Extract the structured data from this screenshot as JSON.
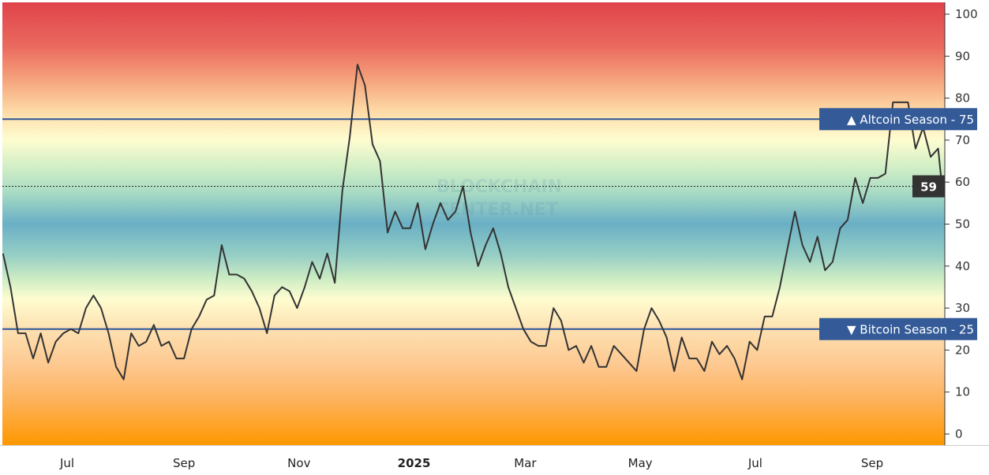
{
  "chart_data": {
    "type": "line",
    "title": "",
    "xlabel": "",
    "ylabel": "",
    "ylim": [
      0,
      100
    ],
    "y_ticks": [
      "0",
      "10",
      "20",
      "30",
      "40",
      "50",
      "60",
      "70",
      "80",
      "90",
      "100"
    ],
    "x_ticks": [
      {
        "date": "2024-07-01",
        "label": "Jul"
      },
      {
        "date": "2024-09-01",
        "label": "Sep"
      },
      {
        "date": "2024-11-01",
        "label": "Nov"
      },
      {
        "date": "2025-01-01",
        "label": "2025",
        "bold": true
      },
      {
        "date": "2025-03-01",
        "label": "Mar"
      },
      {
        "date": "2025-05-01",
        "label": "May"
      },
      {
        "date": "2025-07-01",
        "label": "Jul"
      },
      {
        "date": "2025-09-01",
        "label": "Sep"
      }
    ],
    "y_axis_position": "right",
    "grid": false,
    "background": "vertical color gradient: red at 100, yellow near 70, blue near 50, yellow near 30, orange at 0",
    "line_color": "#333333",
    "reference_lines": [
      {
        "value": 75,
        "label": "▲ Altcoin Season",
        "value_label": "75",
        "color": "#2d5597"
      },
      {
        "value": 25,
        "label": "▼ Bitcoin Season",
        "value_label": "25",
        "color": "#2d5597"
      }
    ],
    "current_value": {
      "value": 59,
      "label": "59"
    },
    "watermark": [
      "BLOCKCHAIN",
      "CENTER.NET"
    ],
    "series": [
      {
        "points": [
          [
            "2024-05-28",
            43
          ],
          [
            "2024-06-01",
            35
          ],
          [
            "2024-06-05",
            24
          ],
          [
            "2024-06-09",
            24
          ],
          [
            "2024-06-13",
            18
          ],
          [
            "2024-06-17",
            24
          ],
          [
            "2024-06-21",
            17
          ],
          [
            "2024-06-25",
            22
          ],
          [
            "2024-06-29",
            24
          ],
          [
            "2024-07-03",
            25
          ],
          [
            "2024-07-07",
            24
          ],
          [
            "2024-07-11",
            30
          ],
          [
            "2024-07-15",
            33
          ],
          [
            "2024-07-19",
            30
          ],
          [
            "2024-07-23",
            24
          ],
          [
            "2024-07-27",
            16
          ],
          [
            "2024-07-31",
            13
          ],
          [
            "2024-08-04",
            24
          ],
          [
            "2024-08-08",
            21
          ],
          [
            "2024-08-12",
            22
          ],
          [
            "2024-08-16",
            26
          ],
          [
            "2024-08-20",
            21
          ],
          [
            "2024-08-24",
            22
          ],
          [
            "2024-08-28",
            18
          ],
          [
            "2024-09-01",
            18
          ],
          [
            "2024-09-05",
            25
          ],
          [
            "2024-09-09",
            28
          ],
          [
            "2024-09-13",
            32
          ],
          [
            "2024-09-17",
            33
          ],
          [
            "2024-09-21",
            45
          ],
          [
            "2024-09-25",
            38
          ],
          [
            "2024-09-29",
            38
          ],
          [
            "2024-10-03",
            37
          ],
          [
            "2024-10-07",
            34
          ],
          [
            "2024-10-11",
            30
          ],
          [
            "2024-10-15",
            24
          ],
          [
            "2024-10-19",
            33
          ],
          [
            "2024-10-23",
            35
          ],
          [
            "2024-10-27",
            34
          ],
          [
            "2024-10-31",
            30
          ],
          [
            "2024-11-04",
            35
          ],
          [
            "2024-11-08",
            41
          ],
          [
            "2024-11-12",
            37
          ],
          [
            "2024-11-16",
            43
          ],
          [
            "2024-11-20",
            36
          ],
          [
            "2024-11-24",
            58
          ],
          [
            "2024-11-28",
            71
          ],
          [
            "2024-12-02",
            88
          ],
          [
            "2024-12-06",
            83
          ],
          [
            "2024-12-10",
            69
          ],
          [
            "2024-12-14",
            65
          ],
          [
            "2024-12-18",
            48
          ],
          [
            "2024-12-22",
            53
          ],
          [
            "2024-12-26",
            49
          ],
          [
            "2024-12-30",
            49
          ],
          [
            "2025-01-03",
            55
          ],
          [
            "2025-01-07",
            44
          ],
          [
            "2025-01-11",
            50
          ],
          [
            "2025-01-15",
            55
          ],
          [
            "2025-01-19",
            51
          ],
          [
            "2025-01-23",
            53
          ],
          [
            "2025-01-27",
            59
          ],
          [
            "2025-01-31",
            48
          ],
          [
            "2025-02-04",
            40
          ],
          [
            "2025-02-08",
            45
          ],
          [
            "2025-02-12",
            49
          ],
          [
            "2025-02-16",
            43
          ],
          [
            "2025-02-20",
            35
          ],
          [
            "2025-02-24",
            30
          ],
          [
            "2025-02-28",
            25
          ],
          [
            "2025-03-04",
            22
          ],
          [
            "2025-03-08",
            21
          ],
          [
            "2025-03-12",
            21
          ],
          [
            "2025-03-16",
            30
          ],
          [
            "2025-03-20",
            27
          ],
          [
            "2025-03-24",
            20
          ],
          [
            "2025-03-28",
            21
          ],
          [
            "2025-04-01",
            17
          ],
          [
            "2025-04-05",
            21
          ],
          [
            "2025-04-09",
            16
          ],
          [
            "2025-04-13",
            16
          ],
          [
            "2025-04-17",
            21
          ],
          [
            "2025-04-21",
            19
          ],
          [
            "2025-04-25",
            17
          ],
          [
            "2025-04-29",
            15
          ],
          [
            "2025-05-03",
            25
          ],
          [
            "2025-05-07",
            30
          ],
          [
            "2025-05-11",
            27
          ],
          [
            "2025-05-15",
            23
          ],
          [
            "2025-05-19",
            15
          ],
          [
            "2025-05-23",
            23
          ],
          [
            "2025-05-27",
            18
          ],
          [
            "2025-05-31",
            18
          ],
          [
            "2025-06-04",
            15
          ],
          [
            "2025-06-08",
            22
          ],
          [
            "2025-06-12",
            19
          ],
          [
            "2025-06-16",
            21
          ],
          [
            "2025-06-20",
            18
          ],
          [
            "2025-06-24",
            13
          ],
          [
            "2025-06-28",
            22
          ],
          [
            "2025-07-02",
            20
          ],
          [
            "2025-07-06",
            28
          ],
          [
            "2025-07-10",
            28
          ],
          [
            "2025-07-14",
            35
          ],
          [
            "2025-07-18",
            44
          ],
          [
            "2025-07-22",
            53
          ],
          [
            "2025-07-26",
            45
          ],
          [
            "2025-07-30",
            41
          ],
          [
            "2025-08-03",
            47
          ],
          [
            "2025-08-07",
            39
          ],
          [
            "2025-08-11",
            41
          ],
          [
            "2025-08-15",
            49
          ],
          [
            "2025-08-19",
            51
          ],
          [
            "2025-08-23",
            61
          ],
          [
            "2025-08-27",
            55
          ],
          [
            "2025-08-31",
            61
          ],
          [
            "2025-09-04",
            61
          ],
          [
            "2025-09-08",
            62
          ],
          [
            "2025-09-12",
            79
          ],
          [
            "2025-09-16",
            79
          ],
          [
            "2025-09-20",
            79
          ],
          [
            "2025-09-24",
            68
          ],
          [
            "2025-09-28",
            73
          ],
          [
            "2025-10-02",
            66
          ],
          [
            "2025-10-06",
            68
          ],
          [
            "2025-10-08",
            59
          ]
        ]
      }
    ]
  }
}
